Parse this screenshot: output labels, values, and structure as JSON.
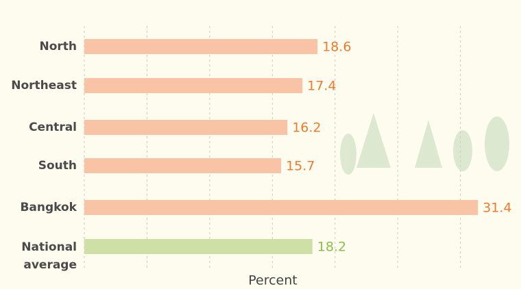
{
  "chart_data": {
    "type": "bar",
    "orientation": "horizontal",
    "x_label": "Percent",
    "categories": [
      "North",
      "Northeast",
      "Central",
      "South",
      "Bangkok",
      "National average"
    ],
    "values": [
      18.6,
      17.4,
      16.2,
      15.7,
      31.4,
      18.2
    ],
    "colors": [
      "#f9c4a6",
      "#f9c4a6",
      "#f9c4a6",
      "#f9c4a6",
      "#f9c4a6",
      "#cfe0a6"
    ],
    "label_colors": [
      "#ef7a2b",
      "#ef7a2b",
      "#ef7a2b",
      "#ef7a2b",
      "#ef7a2b",
      "#8cbf4a"
    ],
    "xlim": [
      0,
      35
    ],
    "xticks": [
      0,
      5,
      10,
      15,
      20,
      25,
      30
    ],
    "grid": true
  }
}
